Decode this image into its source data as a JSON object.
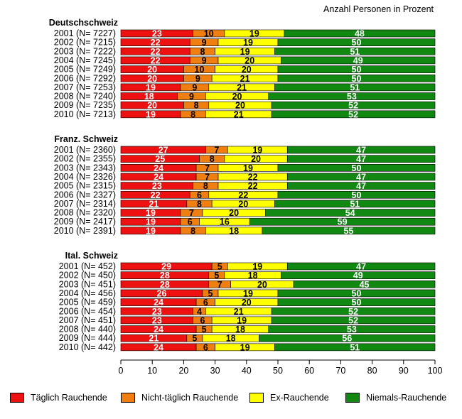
{
  "note": "Anzahl Personen in Prozent",
  "categories": [
    "Täglich Rauchende",
    "Nicht-täglich Rauchende",
    "Ex-Rauchende",
    "Niemals-Rauchende"
  ],
  "colors": [
    "#ee1111",
    "#f07f12",
    "#ffff00",
    "#118811"
  ],
  "chart_data": {
    "type": "bar",
    "orientation": "horizontal",
    "stacked": true,
    "xlim": [
      0,
      100
    ],
    "xticks": [
      "0",
      "10",
      "20",
      "30",
      "40",
      "50",
      "60",
      "70",
      "80",
      "90",
      "100"
    ],
    "grid": false,
    "legend": "bottom",
    "groups": [
      {
        "name": "Deutschschweiz",
        "rows": [
          {
            "label": "2001 (N= 7227)",
            "values": [
              23,
              10,
              19,
              48
            ]
          },
          {
            "label": "2002 (N= 7215)",
            "values": [
              22,
              9,
              19,
              50
            ]
          },
          {
            "label": "2003 (N= 7222)",
            "values": [
              22,
              8,
              19,
              51
            ]
          },
          {
            "label": "2004 (N= 7245)",
            "values": [
              22,
              9,
              20,
              49
            ]
          },
          {
            "label": "2005 (N= 7249)",
            "values": [
              20,
              10,
              20,
              50
            ]
          },
          {
            "label": "2006 (N= 7292)",
            "values": [
              20,
              9,
              21,
              50
            ]
          },
          {
            "label": "2007 (N= 7253)",
            "values": [
              19,
              9,
              21,
              51
            ]
          },
          {
            "label": "2008 (N= 7240)",
            "values": [
              18,
              9,
              20,
              53
            ]
          },
          {
            "label": "2009 (N= 7235)",
            "values": [
              20,
              8,
              20,
              52
            ]
          },
          {
            "label": "2010 (N= 7213)",
            "values": [
              19,
              8,
              21,
              52
            ]
          }
        ]
      },
      {
        "name": "Franz. Schweiz",
        "rows": [
          {
            "label": "2001 (N= 2360)",
            "values": [
              27,
              7,
              19,
              47
            ]
          },
          {
            "label": "2002 (N= 2355)",
            "values": [
              25,
              8,
              20,
              47
            ]
          },
          {
            "label": "2003 (N= 2343)",
            "values": [
              24,
              7,
              19,
              50
            ]
          },
          {
            "label": "2004 (N= 2326)",
            "values": [
              24,
              7,
              22,
              47
            ]
          },
          {
            "label": "2005 (N= 2315)",
            "values": [
              23,
              8,
              22,
              47
            ]
          },
          {
            "label": "2006 (N= 2327)",
            "values": [
              22,
              6,
              22,
              50
            ]
          },
          {
            "label": "2007 (N= 2314)",
            "values": [
              21,
              8,
              20,
              51
            ]
          },
          {
            "label": "2008 (N= 2320)",
            "values": [
              19,
              7,
              20,
              54
            ]
          },
          {
            "label": "2009 (N= 2417)",
            "values": [
              19,
              6,
              16,
              59
            ]
          },
          {
            "label": "2010 (N= 2391)",
            "values": [
              19,
              8,
              18,
              55
            ]
          }
        ]
      },
      {
        "name": "Ital. Schweiz",
        "rows": [
          {
            "label": "2001 (N=   452)",
            "values": [
              29,
              5,
              19,
              47
            ]
          },
          {
            "label": "2002 (N=   450)",
            "values": [
              28,
              5,
              18,
              49
            ]
          },
          {
            "label": "2003 (N=   451)",
            "values": [
              28,
              7,
              20,
              45
            ]
          },
          {
            "label": "2004 (N=   456)",
            "values": [
              26,
              5,
              19,
              50
            ]
          },
          {
            "label": "2005 (N=   459)",
            "values": [
              24,
              6,
              20,
              50
            ]
          },
          {
            "label": "2006 (N=   454)",
            "values": [
              23,
              4,
              21,
              52
            ]
          },
          {
            "label": "2007 (N=   451)",
            "values": [
              23,
              6,
              19,
              52
            ]
          },
          {
            "label": "2008 (N=   440)",
            "values": [
              24,
              5,
              18,
              53
            ]
          },
          {
            "label": "2009 (N=   444)",
            "values": [
              21,
              5,
              18,
              56
            ]
          },
          {
            "label": "2010 (N=   442)",
            "values": [
              24,
              6,
              19,
              51
            ]
          }
        ]
      }
    ]
  }
}
